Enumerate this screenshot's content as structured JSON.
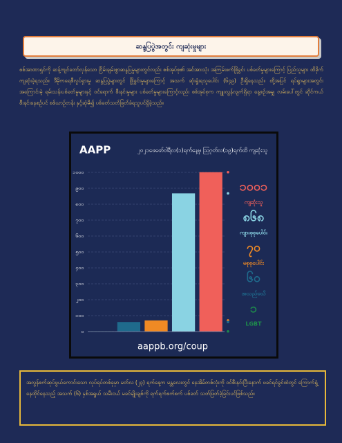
{
  "header": {
    "title": "ဆန္ဒပြပွဲအတွင်း ကျဆုံးမှုများ"
  },
  "paragraph": "စစ်အာဏာရှင်ကို ဆန့်ကျင်တော်လှန်သော ငြိမ်းချမ်းစွာဆန္ဒပြမှုများတွင်လည်း စစ်အုပ်စု၏ အင်အားသုံး အကြမ်းဖက်ဖြိုခွင်း ပစ်ခတ်မှုများကြောင့် ပြည်သူများ ထိခိုက်ကျဆုံးခဲ့ရသည်။ ဒီမိုကရေစီလှုပ်ရှားမှု ဆန္ဒပြပွဲများတွင် ဖြိုခွင်းမှုများကြောင့် အသက် ဆုံးရှုံးရသူပေါင်း (၆၄၉) ဦးရှိနေသည်။ ထို့အပြင် ရပ်ရွာများအတွင်း အကြောင်းမဲ့ ရမ်းသန်းပစ်ခတ်မှုများနှင့် ဝင်ရောက် စီးနင်းမှုများ ပစ်ခတ်မှုများကြောင့်လည်း စစ်အုပ်စုက ကျူးလွန်လျက်ရှိရာ နေ့စဉ်အမျှ လမ်းပေါ်တွင် ဆိုင်ကယ်စီးနင်းနေစဉ်ပင် စစ်ယာဉ်တန်း နှင့်ဆုံမိ၍ ပစ်ခတ်သတ်ဖြတ်ခံရသူပင်ရှိခဲ့သည်။",
  "chart_data": {
    "type": "bar",
    "logo": "AAPP",
    "title": "၂၀၂၁ဖေဖော်ဝါရီလ(၁)ရက်နေ့မှ ဩဂုတ်လ(၁၉)ရက်ထိ ကျဆုံးသူ",
    "source": "aappb.org/coup",
    "categories": [
      "ကျဆုံးသူ",
      "ကျားစုစုပေါင်း",
      "မစုစုပေါင်း",
      "အသည်မသိ",
      "LGBT"
    ],
    "values": [
      1001,
      868,
      70,
      60,
      1
    ],
    "value_labels": [
      "၁၀၀၁",
      "၈၆၈",
      "၇၀",
      "၆၀",
      "၁"
    ],
    "colors": [
      "#f0605a",
      "#8ad3e3",
      "#f08a24",
      "#1f6a8c",
      "#1e8a4c"
    ],
    "ylim": [
      0,
      1000
    ],
    "yticks": [
      {
        "value": 0,
        "label": "၀"
      },
      {
        "value": 100,
        "label": "၁၀၀"
      },
      {
        "value": 200,
        "label": "၂၀၀"
      },
      {
        "value": 300,
        "label": "၃၀၀"
      },
      {
        "value": 400,
        "label": "၄၀၀"
      },
      {
        "value": 500,
        "label": "၅၀၀"
      },
      {
        "value": 600,
        "label": "၆၀၀"
      },
      {
        "value": 700,
        "label": "၇၀၀"
      },
      {
        "value": 800,
        "label": "၈၀၀"
      },
      {
        "value": 900,
        "label": "၉၀၀"
      },
      {
        "value": 1000,
        "label": "၁၀၀၀"
      }
    ],
    "grid": true
  },
  "footer": "အလွန်စက်ဆုပ်ဖွယ်ကောင်းသော လုပ်ရပ်တစ်ခုမှာ မတ်လ (၂၃) ရက်နေ့က မန္တလေးတွင် နေအိမ်တစ်လုံးကို ဝင်စီးနင်းပြီးနောက် ဖခင်ရင်ခွင်ထဲတွင် ကြောက်ရွံ့နေထိုင်နေသည့် အသက် (၆) နှစ်အရွယ် သမီးငယ် မခင်မျိုးချစ်ကို ရက်ရက်စက်စက် ပစ်ခတ် သတ်ဖြတ်ခဲ့ခြင်းပင်ဖြစ်သည်။"
}
